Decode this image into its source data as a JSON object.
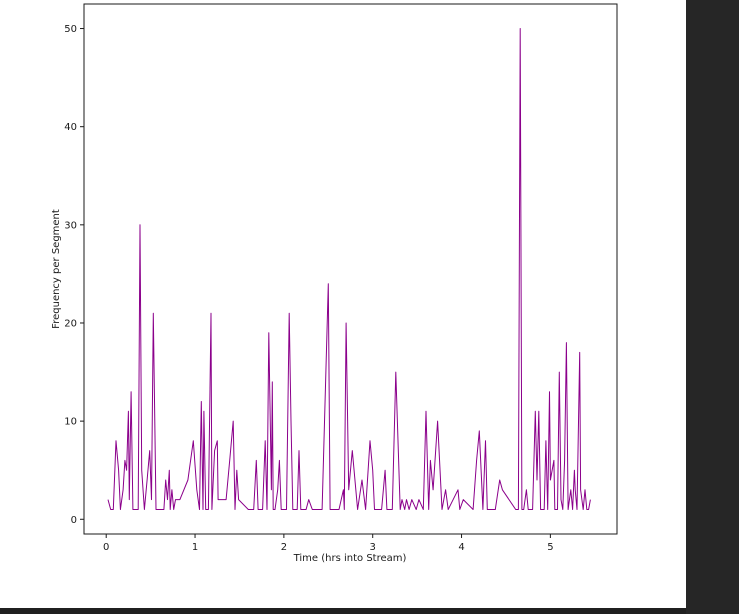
{
  "colors": {
    "line": "#8b008b",
    "scrollbar": "#262626"
  },
  "chart_data": {
    "type": "line",
    "title": "",
    "xlabel": "Time (hrs into Stream)",
    "ylabel": "Frequency per Segment",
    "xlim": [
      -0.25,
      5.75
    ],
    "ylim": [
      -1.5,
      52.5
    ],
    "xticks": [
      0,
      1,
      2,
      3,
      4,
      5
    ],
    "yticks": [
      0,
      10,
      20,
      30,
      40,
      50
    ],
    "grid": false,
    "series": [
      {
        "color": "#8b008b",
        "points": [
          [
            0.02,
            2
          ],
          [
            0.05,
            1
          ],
          [
            0.08,
            1
          ],
          [
            0.11,
            8
          ],
          [
            0.14,
            5
          ],
          [
            0.16,
            1
          ],
          [
            0.19,
            3
          ],
          [
            0.21,
            6
          ],
          [
            0.23,
            5
          ],
          [
            0.25,
            11
          ],
          [
            0.26,
            2
          ],
          [
            0.28,
            13
          ],
          [
            0.3,
            1
          ],
          [
            0.33,
            1
          ],
          [
            0.36,
            1
          ],
          [
            0.38,
            30
          ],
          [
            0.4,
            5
          ],
          [
            0.43,
            1
          ],
          [
            0.46,
            4
          ],
          [
            0.49,
            7
          ],
          [
            0.51,
            2
          ],
          [
            0.53,
            21
          ],
          [
            0.56,
            1
          ],
          [
            0.59,
            1
          ],
          [
            0.62,
            1
          ],
          [
            0.65,
            1
          ],
          [
            0.67,
            4
          ],
          [
            0.69,
            2
          ],
          [
            0.71,
            5
          ],
          [
            0.72,
            1
          ],
          [
            0.74,
            3
          ],
          [
            0.76,
            1
          ],
          [
            0.78,
            2
          ],
          [
            0.83,
            2
          ],
          [
            0.92,
            4
          ],
          [
            0.98,
            8
          ],
          [
            1.02,
            3
          ],
          [
            1.05,
            1
          ],
          [
            1.07,
            12
          ],
          [
            1.09,
            1
          ],
          [
            1.1,
            11
          ],
          [
            1.12,
            1
          ],
          [
            1.15,
            1
          ],
          [
            1.18,
            21
          ],
          [
            1.19,
            1
          ],
          [
            1.22,
            7
          ],
          [
            1.25,
            8
          ],
          [
            1.26,
            2
          ],
          [
            1.3,
            2
          ],
          [
            1.35,
            2
          ],
          [
            1.39,
            6
          ],
          [
            1.43,
            10
          ],
          [
            1.45,
            1
          ],
          [
            1.47,
            5
          ],
          [
            1.49,
            2
          ],
          [
            1.6,
            1
          ],
          [
            1.66,
            1
          ],
          [
            1.69,
            6
          ],
          [
            1.71,
            1
          ],
          [
            1.76,
            1
          ],
          [
            1.79,
            8
          ],
          [
            1.81,
            1
          ],
          [
            1.83,
            19
          ],
          [
            1.86,
            3
          ],
          [
            1.87,
            14
          ],
          [
            1.88,
            1
          ],
          [
            1.9,
            1
          ],
          [
            1.93,
            3
          ],
          [
            1.95,
            6
          ],
          [
            1.97,
            1
          ],
          [
            2.03,
            1
          ],
          [
            2.06,
            21
          ],
          [
            2.08,
            10
          ],
          [
            2.1,
            1
          ],
          [
            2.15,
            1
          ],
          [
            2.17,
            7
          ],
          [
            2.19,
            1
          ],
          [
            2.25,
            1
          ],
          [
            2.28,
            2
          ],
          [
            2.32,
            1
          ],
          [
            2.43,
            1
          ],
          [
            2.5,
            24
          ],
          [
            2.52,
            1
          ],
          [
            2.62,
            1
          ],
          [
            2.67,
            3
          ],
          [
            2.68,
            1
          ],
          [
            2.7,
            20
          ],
          [
            2.73,
            3
          ],
          [
            2.77,
            7
          ],
          [
            2.83,
            1
          ],
          [
            2.88,
            4
          ],
          [
            2.92,
            1
          ],
          [
            2.97,
            8
          ],
          [
            3.0,
            5
          ],
          [
            3.02,
            1
          ],
          [
            3.1,
            1
          ],
          [
            3.14,
            5
          ],
          [
            3.16,
            1
          ],
          [
            3.22,
            1
          ],
          [
            3.26,
            15
          ],
          [
            3.31,
            1
          ],
          [
            3.33,
            2
          ],
          [
            3.36,
            1
          ],
          [
            3.38,
            2
          ],
          [
            3.41,
            1
          ],
          [
            3.44,
            2
          ],
          [
            3.49,
            1
          ],
          [
            3.52,
            2
          ],
          [
            3.57,
            1
          ],
          [
            3.6,
            11
          ],
          [
            3.63,
            1
          ],
          [
            3.65,
            6
          ],
          [
            3.68,
            3
          ],
          [
            3.73,
            10
          ],
          [
            3.78,
            1
          ],
          [
            3.82,
            3
          ],
          [
            3.85,
            1
          ],
          [
            3.96,
            3
          ],
          [
            3.98,
            1
          ],
          [
            4.02,
            2
          ],
          [
            4.13,
            1
          ],
          [
            4.17,
            6
          ],
          [
            4.2,
            9
          ],
          [
            4.24,
            1
          ],
          [
            4.27,
            8
          ],
          [
            4.29,
            1
          ],
          [
            4.38,
            1
          ],
          [
            4.43,
            4
          ],
          [
            4.46,
            3
          ],
          [
            4.61,
            1
          ],
          [
            4.64,
            1
          ],
          [
            4.66,
            50
          ],
          [
            4.68,
            1
          ],
          [
            4.7,
            1
          ],
          [
            4.73,
            3
          ],
          [
            4.75,
            1
          ],
          [
            4.8,
            1
          ],
          [
            4.83,
            11
          ],
          [
            4.85,
            4
          ],
          [
            4.87,
            11
          ],
          [
            4.89,
            1
          ],
          [
            4.93,
            1
          ],
          [
            4.95,
            8
          ],
          [
            4.97,
            1
          ],
          [
            4.99,
            13
          ],
          [
            5.0,
            4
          ],
          [
            5.04,
            6
          ],
          [
            5.05,
            1
          ],
          [
            5.08,
            1
          ],
          [
            5.1,
            15
          ],
          [
            5.12,
            2
          ],
          [
            5.14,
            1
          ],
          [
            5.16,
            6
          ],
          [
            5.18,
            18
          ],
          [
            5.2,
            1
          ],
          [
            5.23,
            3
          ],
          [
            5.25,
            1
          ],
          [
            5.27,
            5
          ],
          [
            5.28,
            3
          ],
          [
            5.3,
            1
          ],
          [
            5.33,
            17
          ],
          [
            5.34,
            3
          ],
          [
            5.37,
            1
          ],
          [
            5.39,
            3
          ],
          [
            5.41,
            1
          ],
          [
            5.43,
            1
          ],
          [
            5.45,
            2
          ]
        ]
      }
    ]
  }
}
